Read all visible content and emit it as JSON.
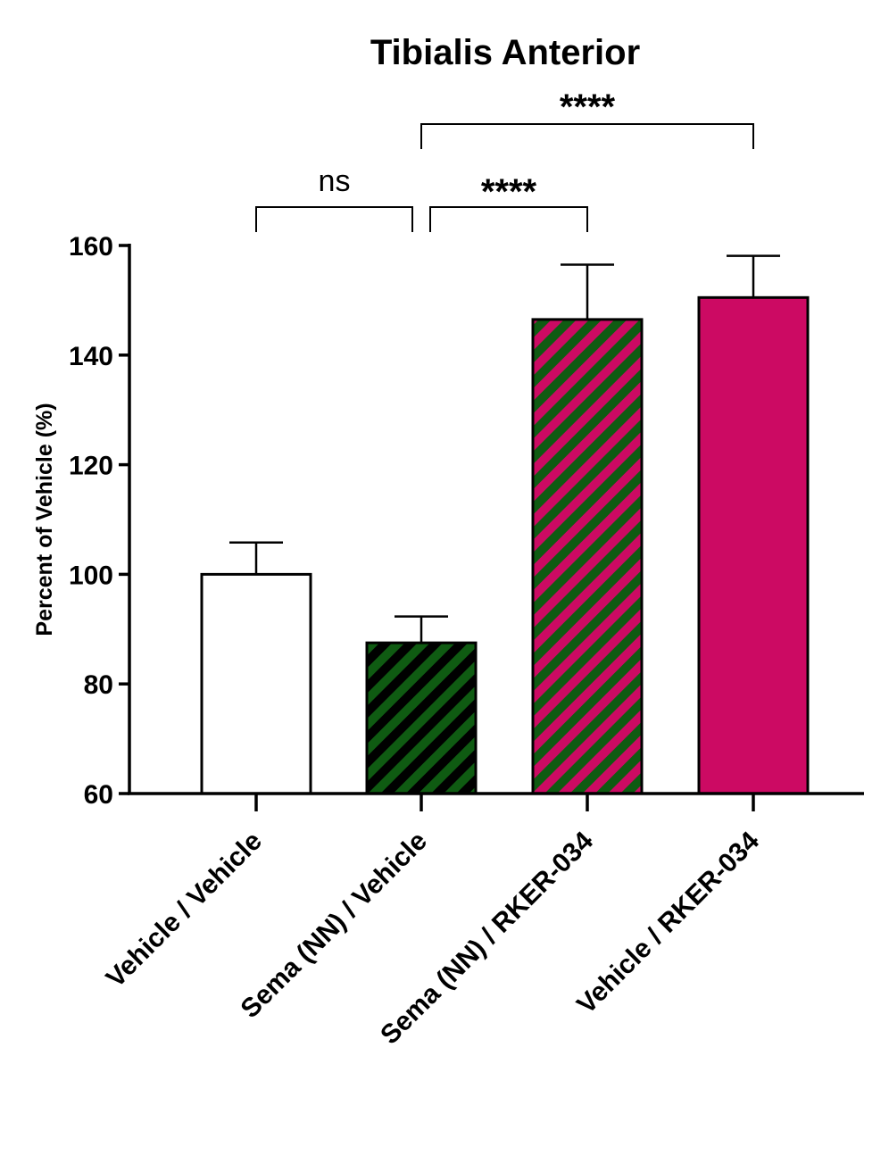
{
  "chart_data": {
    "type": "bar",
    "title": "Tibialis Anterior",
    "xlabel": "",
    "ylabel": "Percent of Vehicle (%)",
    "ylim": [
      60,
      160
    ],
    "yticks": [
      60,
      80,
      100,
      120,
      140,
      160
    ],
    "grid": false,
    "categories": [
      "Vehicle / Vehicle",
      "Sema (NN) / Vehicle",
      "Sema (NN) / RKER-034",
      "Vehicle / RKER-034"
    ],
    "values": [
      100,
      87.5,
      146.5,
      150.5
    ],
    "error_upper": [
      5.8,
      4.8,
      10.0,
      7.6
    ],
    "fills": [
      {
        "type": "solid",
        "color": "#ffffff"
      },
      {
        "type": "stripe",
        "color": "#0f5b12",
        "stripe": "#000000"
      },
      {
        "type": "stripe",
        "color": "#0f5b12",
        "stripe": "#cc0a63"
      },
      {
        "type": "solid",
        "color": "#cc0a63"
      }
    ],
    "significance": [
      {
        "from": 0,
        "to": 1,
        "label": "ns"
      },
      {
        "from": 1,
        "to": 2,
        "label": "****"
      },
      {
        "from": 1,
        "to": 3,
        "label": "****"
      }
    ]
  }
}
